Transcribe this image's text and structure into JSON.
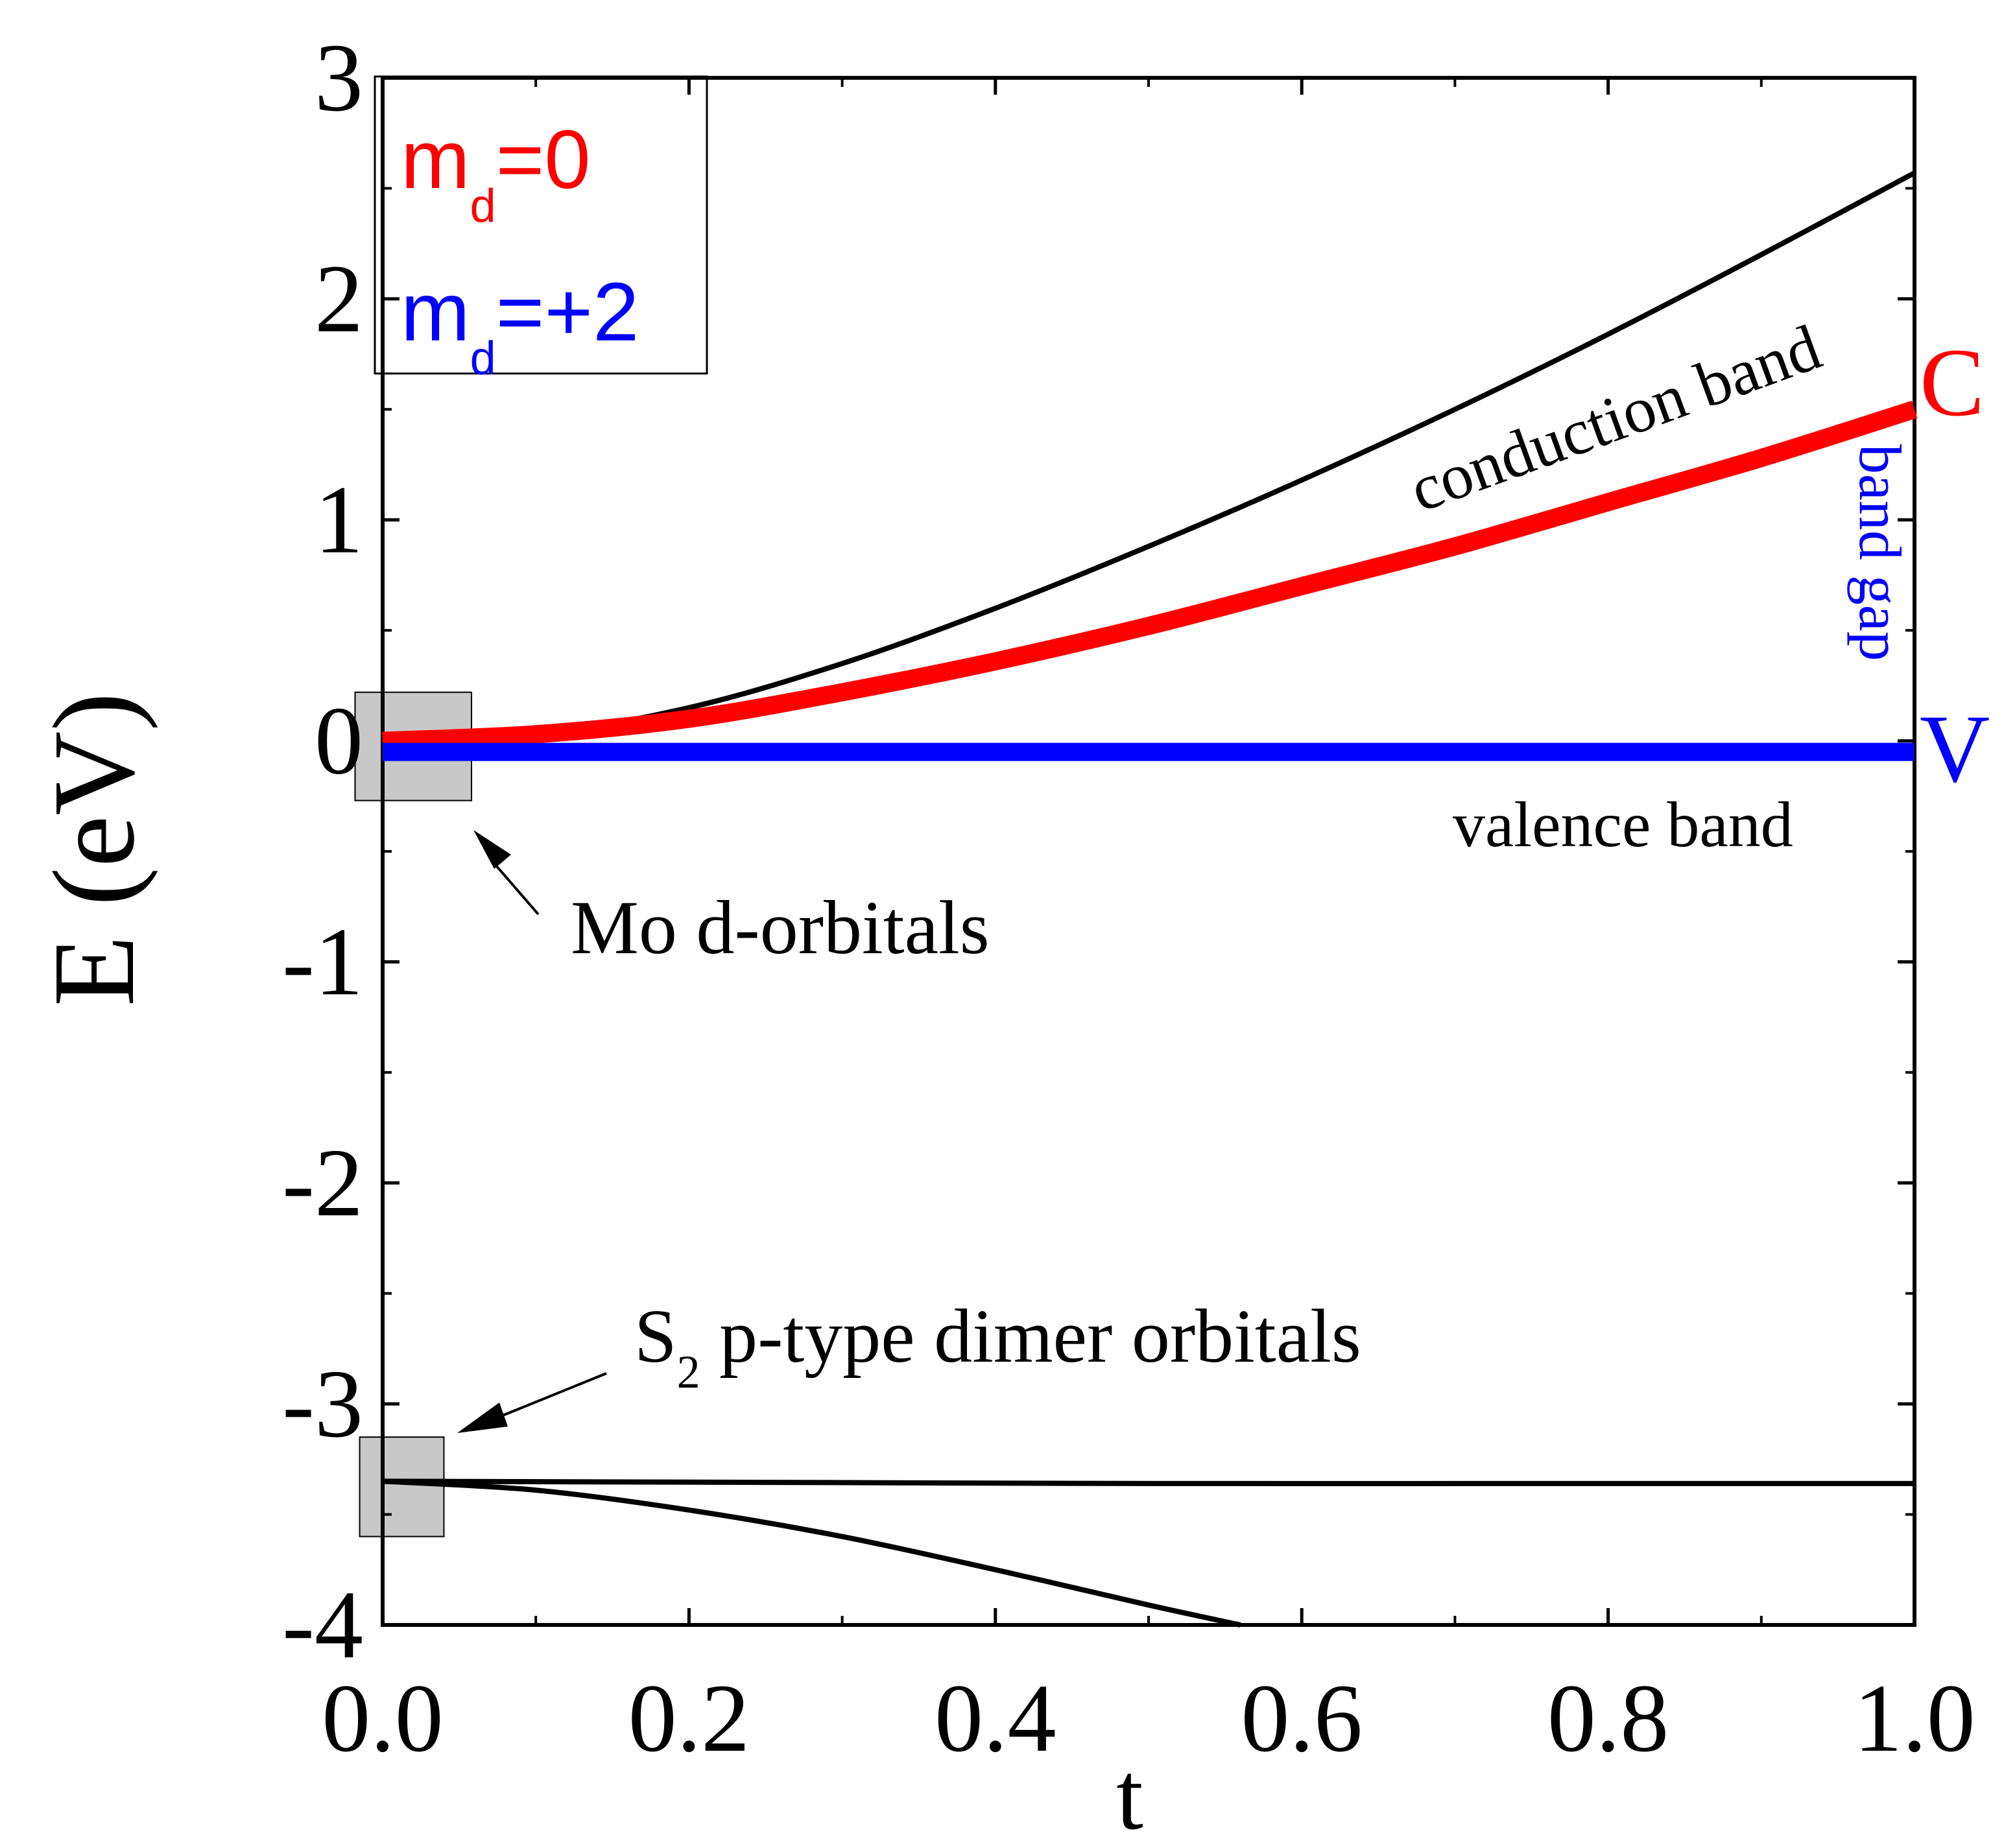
{
  "chart_data": {
    "type": "line",
    "title": "",
    "xlabel": "t",
    "ylabel": "E (eV)",
    "xlim": [
      0.0,
      1.0
    ],
    "ylim": [
      -4,
      3
    ],
    "x_ticks": [
      {
        "value": 0.0,
        "label": "0.0"
      },
      {
        "value": 0.2,
        "label": "0.2"
      },
      {
        "value": 0.4,
        "label": "0.4"
      },
      {
        "value": 0.6,
        "label": "0.6"
      },
      {
        "value": 0.8,
        "label": "0.8"
      },
      {
        "value": 1.0,
        "label": "1.0"
      }
    ],
    "y_ticks": [
      {
        "value": 3,
        "label": "3"
      },
      {
        "value": 2,
        "label": "2"
      },
      {
        "value": 1,
        "label": "1"
      },
      {
        "value": 0,
        "label": "0"
      },
      {
        "value": -1,
        "label": "-1"
      },
      {
        "value": -2,
        "label": "-2"
      },
      {
        "value": -3,
        "label": "-3"
      },
      {
        "value": -4,
        "label": "-4"
      }
    ],
    "series": [
      {
        "name": "upper-black",
        "color": "#000000",
        "x": [
          0.0,
          0.1,
          0.2,
          0.3,
          0.4,
          0.5,
          0.6,
          0.7,
          0.8,
          0.9,
          1.0
        ],
        "y": [
          0.0,
          0.03,
          0.15,
          0.35,
          0.6,
          0.88,
          1.18,
          1.5,
          1.84,
          2.2,
          2.57
        ]
      },
      {
        "name": "m_d=0",
        "color": "#ff0000",
        "x": [
          0.0,
          0.1,
          0.2,
          0.3,
          0.4,
          0.5,
          0.6,
          0.7,
          0.8,
          0.9,
          1.0
        ],
        "y": [
          0.0,
          0.03,
          0.1,
          0.22,
          0.36,
          0.52,
          0.7,
          0.88,
          1.08,
          1.28,
          1.5
        ]
      },
      {
        "name": "m_d=+2",
        "color": "#0000ff",
        "x": [
          0.0,
          0.25,
          0.5,
          0.75,
          1.0
        ],
        "y": [
          -0.05,
          -0.05,
          -0.05,
          -0.05,
          -0.05
        ]
      },
      {
        "name": "S2-flat",
        "color": "#000000",
        "x": [
          0.0,
          0.25,
          0.5,
          0.75,
          1.0
        ],
        "y": [
          -3.35,
          -3.355,
          -3.36,
          -3.36,
          -3.36
        ]
      },
      {
        "name": "S2-descending",
        "color": "#000000",
        "x": [
          0.0,
          0.1,
          0.2,
          0.3,
          0.4,
          0.5,
          0.56
        ],
        "y": [
          -3.35,
          -3.39,
          -3.48,
          -3.6,
          -3.75,
          -3.91,
          -4.0
        ]
      }
    ],
    "legend": {
      "position": "top-left",
      "entries": [
        {
          "text": "m",
          "sub": "d",
          "suffix": "=0",
          "color": "#ff0000"
        },
        {
          "text": "m",
          "sub": "d",
          "suffix": "=+2",
          "color": "#0000ff"
        }
      ]
    },
    "annotations": {
      "conduction_band": "conduction band",
      "valence_band": "valence band",
      "band_gap": "band gap",
      "c_label": "C",
      "v_label": "V",
      "mo_label": "Mo d-orbitals",
      "s2_main": "S",
      "s2_sub": "2",
      "s2_rest": " p-type dimer orbitals"
    },
    "highlight_boxes": [
      {
        "name": "mo-box",
        "x_range": [
          -0.018,
          0.058
        ],
        "y_range": [
          -0.27,
          0.22
        ]
      },
      {
        "name": "s2-box",
        "x_range": [
          -0.015,
          0.04
        ],
        "y_range": [
          -3.6,
          -3.15
        ]
      }
    ],
    "colors": {
      "red": "#ff0000",
      "blue": "#0000ff",
      "black": "#000000",
      "box_fill": "#c8c8c8"
    }
  }
}
